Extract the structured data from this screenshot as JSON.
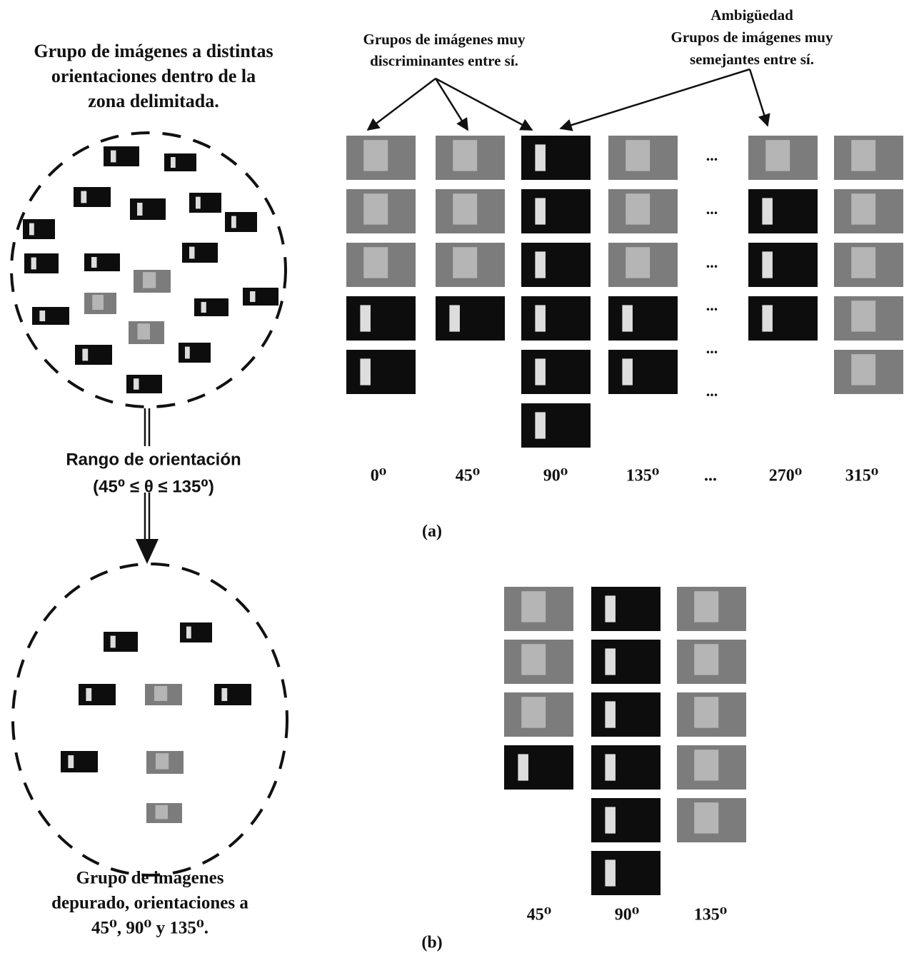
{
  "left": {
    "title_lines": [
      "Grupo de imágenes a distintas",
      "orientaciones dentro de la",
      "zona delimitada."
    ],
    "range_lines": [
      "Rango de orientación",
      "(45⁰ ≤ θ ≤ 135⁰)"
    ],
    "caption_lines": [
      "Grupo de imágenes",
      "depurado, orientaciones a",
      "45⁰, 90⁰ y 135⁰."
    ]
  },
  "panel_a": {
    "annotation_left_lines": [
      "Grupos de  imágenes muy",
      "discriminantes entre sí."
    ],
    "annotation_right_lines": [
      "Ambigüedad",
      "Grupos de imágenes muy",
      "semejantes entre sí."
    ],
    "grid_ellipsis": "...",
    "column_labels": [
      "0⁰",
      "45⁰",
      "90⁰",
      "135⁰",
      "...",
      "270⁰",
      "315⁰"
    ],
    "caption": "(a)"
  },
  "panel_b": {
    "column_labels": [
      "45⁰",
      "90⁰",
      "135⁰"
    ],
    "caption": "(b)"
  }
}
